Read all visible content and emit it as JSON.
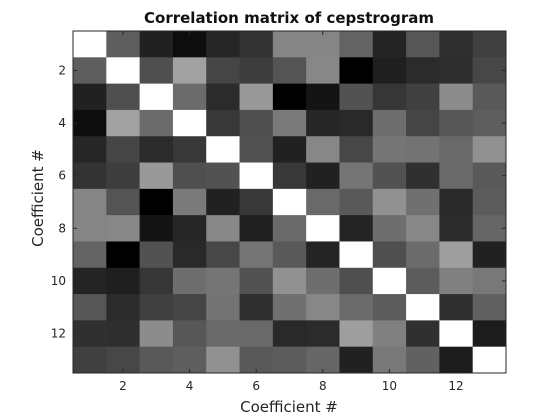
{
  "chart_data": {
    "type": "heatmap",
    "title": "Correlation matrix of cepstrogram",
    "xlabel": "Coefficient #",
    "ylabel": "Coefficient #",
    "x_ticks": [
      2,
      4,
      6,
      8,
      10,
      12
    ],
    "y_ticks": [
      2,
      4,
      6,
      8,
      10,
      12
    ],
    "xlim": [
      0.5,
      13.5
    ],
    "ylim": [
      0.5,
      13.5
    ],
    "y_direction": "reverse",
    "colormap": "gray",
    "color_range": [
      0,
      1
    ],
    "size": 13,
    "values": [
      [
        1.0,
        0.37,
        0.13,
        0.05,
        0.15,
        0.2,
        0.52,
        0.52,
        0.39,
        0.14,
        0.34,
        0.19,
        0.25
      ],
      [
        0.37,
        1.0,
        0.31,
        0.63,
        0.27,
        0.24,
        0.33,
        0.53,
        0.0,
        0.12,
        0.17,
        0.18,
        0.28
      ],
      [
        0.13,
        0.31,
        1.0,
        0.42,
        0.17,
        0.6,
        0.0,
        0.08,
        0.32,
        0.21,
        0.25,
        0.55,
        0.35
      ],
      [
        0.05,
        0.63,
        0.42,
        1.0,
        0.22,
        0.31,
        0.48,
        0.15,
        0.16,
        0.43,
        0.27,
        0.34,
        0.37
      ],
      [
        0.15,
        0.27,
        0.17,
        0.22,
        1.0,
        0.32,
        0.13,
        0.53,
        0.28,
        0.46,
        0.45,
        0.41,
        0.57
      ],
      [
        0.2,
        0.24,
        0.6,
        0.31,
        0.32,
        1.0,
        0.22,
        0.13,
        0.46,
        0.32,
        0.19,
        0.41,
        0.35
      ],
      [
        0.52,
        0.33,
        0.0,
        0.48,
        0.13,
        0.22,
        1.0,
        0.41,
        0.35,
        0.57,
        0.44,
        0.16,
        0.36
      ],
      [
        0.52,
        0.53,
        0.08,
        0.15,
        0.53,
        0.13,
        0.41,
        1.0,
        0.14,
        0.43,
        0.53,
        0.17,
        0.4
      ],
      [
        0.39,
        0.0,
        0.32,
        0.16,
        0.28,
        0.46,
        0.35,
        0.14,
        1.0,
        0.31,
        0.42,
        0.62,
        0.13
      ],
      [
        0.14,
        0.12,
        0.21,
        0.43,
        0.46,
        0.32,
        0.57,
        0.43,
        0.31,
        1.0,
        0.36,
        0.5,
        0.47
      ],
      [
        0.34,
        0.17,
        0.25,
        0.27,
        0.45,
        0.19,
        0.44,
        0.53,
        0.42,
        0.36,
        1.0,
        0.19,
        0.38
      ],
      [
        0.19,
        0.18,
        0.55,
        0.34,
        0.41,
        0.41,
        0.16,
        0.17,
        0.62,
        0.5,
        0.19,
        1.0,
        0.11
      ],
      [
        0.25,
        0.28,
        0.35,
        0.37,
        0.57,
        0.35,
        0.36,
        0.4,
        0.13,
        0.47,
        0.38,
        0.11,
        1.0
      ]
    ]
  }
}
